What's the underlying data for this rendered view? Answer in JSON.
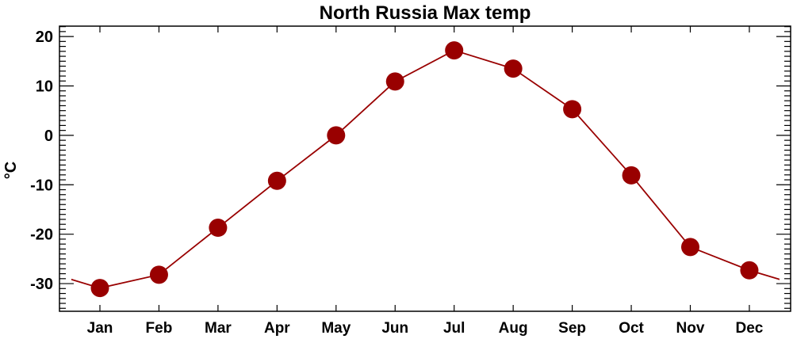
{
  "chart_data": {
    "type": "line",
    "title": "North Russia Max temp",
    "xlabel": "",
    "ylabel": "°C",
    "categories": [
      "Jan",
      "Feb",
      "Mar",
      "Apr",
      "May",
      "Jun",
      "Jul",
      "Aug",
      "Sep",
      "Oct",
      "Nov",
      "Dec"
    ],
    "values": [
      -30.9,
      -28.2,
      -18.7,
      -9.2,
      0.0,
      10.9,
      17.2,
      13.5,
      5.3,
      -8.1,
      -22.6,
      -27.3
    ],
    "ylim": [
      -35.6,
      22.1
    ],
    "yticks": [
      20,
      10,
      0,
      -10,
      -20,
      -30
    ],
    "ytick_labels": [
      "20",
      "10",
      "0",
      "-10",
      "-20",
      "-30"
    ],
    "minor_ytick_step": 1,
    "grid": false,
    "line_wraps_around_year": true,
    "colors": {
      "series": "#990000",
      "axes": "#000000"
    }
  }
}
